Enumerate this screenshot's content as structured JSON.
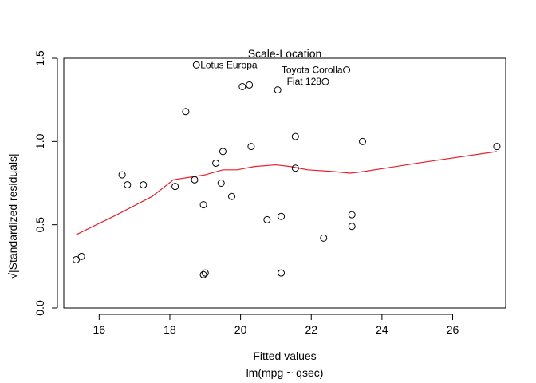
{
  "chart_data": {
    "type": "scatter",
    "title": "Scale-Location",
    "xlabel": "Fitted values",
    "xlabel_sub": "lm(mpg ~ qsec)",
    "ylabel": "√|Standardized residuals|",
    "xlim": [
      15.0,
      27.5
    ],
    "ylim": [
      0.0,
      1.5
    ],
    "x_ticks": [
      16,
      18,
      20,
      22,
      24,
      26
    ],
    "y_ticks": [
      0.0,
      0.5,
      1.0,
      1.5
    ],
    "x_tick_labels": [
      "16",
      "18",
      "20",
      "22",
      "24",
      "26"
    ],
    "y_tick_labels": [
      "0.0",
      "0.5",
      "1.0",
      "1.5"
    ],
    "points": [
      {
        "x": 15.35,
        "y": 0.29
      },
      {
        "x": 15.5,
        "y": 0.31
      },
      {
        "x": 16.65,
        "y": 0.8
      },
      {
        "x": 16.8,
        "y": 0.74
      },
      {
        "x": 17.25,
        "y": 0.74
      },
      {
        "x": 18.15,
        "y": 0.73
      },
      {
        "x": 18.45,
        "y": 1.18
      },
      {
        "x": 18.7,
        "y": 0.77
      },
      {
        "x": 18.75,
        "y": 1.46
      },
      {
        "x": 18.95,
        "y": 0.62
      },
      {
        "x": 18.95,
        "y": 0.2
      },
      {
        "x": 19.0,
        "y": 0.21
      },
      {
        "x": 19.3,
        "y": 0.87
      },
      {
        "x": 19.45,
        "y": 0.75
      },
      {
        "x": 19.5,
        "y": 0.94
      },
      {
        "x": 19.75,
        "y": 0.67
      },
      {
        "x": 20.05,
        "y": 1.33
      },
      {
        "x": 20.25,
        "y": 1.34
      },
      {
        "x": 20.3,
        "y": 0.97
      },
      {
        "x": 20.75,
        "y": 0.53
      },
      {
        "x": 21.05,
        "y": 1.31
      },
      {
        "x": 21.15,
        "y": 0.55
      },
      {
        "x": 21.15,
        "y": 0.21
      },
      {
        "x": 21.55,
        "y": 1.03
      },
      {
        "x": 21.55,
        "y": 0.84
      },
      {
        "x": 22.35,
        "y": 0.42
      },
      {
        "x": 22.4,
        "y": 1.36
      },
      {
        "x": 23.0,
        "y": 1.43
      },
      {
        "x": 23.15,
        "y": 0.56
      },
      {
        "x": 23.15,
        "y": 0.49
      },
      {
        "x": 23.45,
        "y": 1.0
      },
      {
        "x": 27.25,
        "y": 0.97
      }
    ],
    "annotations": [
      {
        "text": "Lotus Europa",
        "x": 18.75,
        "y": 1.46,
        "anchor": "start"
      },
      {
        "text": "Toyota Corolla",
        "x": 23.0,
        "y": 1.43,
        "anchor": "end"
      },
      {
        "text": "Fiat 128",
        "x": 22.4,
        "y": 1.36,
        "anchor": "end"
      }
    ],
    "smoother": {
      "name": "",
      "color": "#e8202a",
      "x": [
        15.35,
        16.5,
        17.5,
        18.1,
        18.7,
        19.0,
        19.5,
        19.9,
        20.4,
        21.0,
        21.4,
        21.9,
        22.6,
        23.1,
        23.5,
        25.0,
        27.25
      ],
      "y": [
        0.44,
        0.56,
        0.67,
        0.77,
        0.79,
        0.8,
        0.83,
        0.83,
        0.85,
        0.86,
        0.85,
        0.83,
        0.82,
        0.81,
        0.82,
        0.87,
        0.94
      ]
    },
    "point_style": "open-circle",
    "grid": false
  }
}
